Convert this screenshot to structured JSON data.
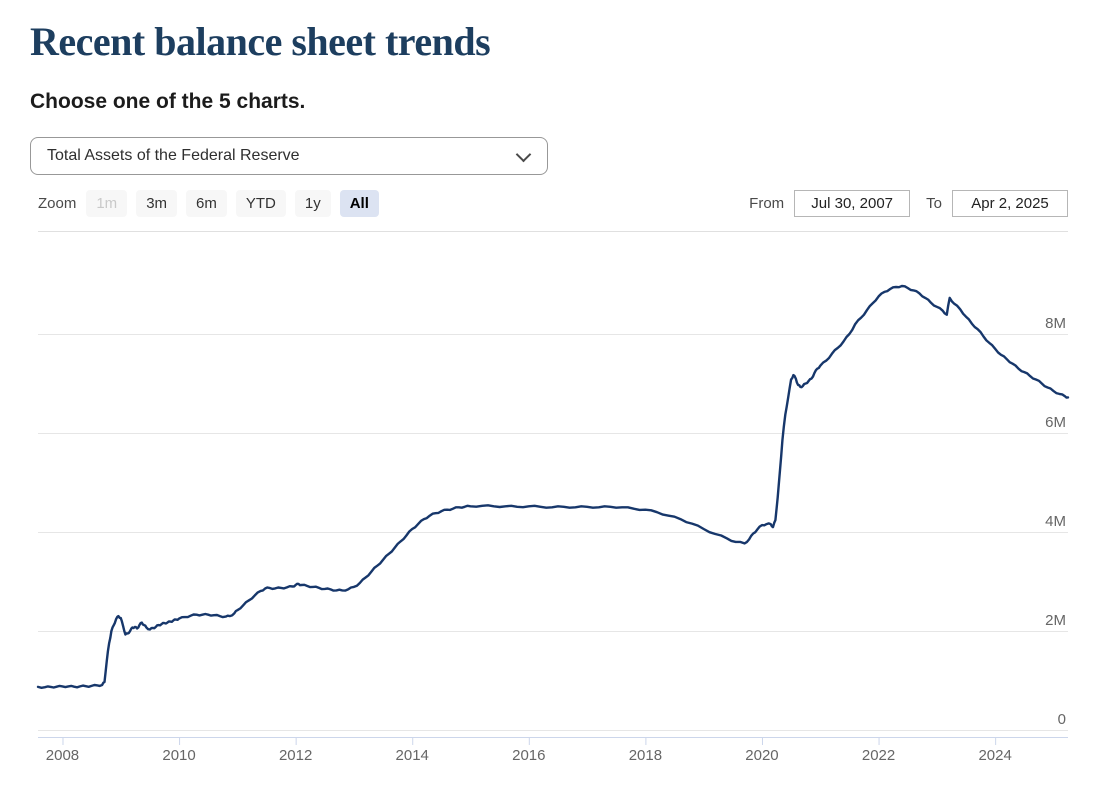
{
  "header": {
    "title": "Recent balance sheet trends",
    "subtitle": "Choose one of the 5 charts."
  },
  "chart_selector": {
    "value": "Total Assets of the Federal Reserve",
    "icon": "chevron-down-icon"
  },
  "toolbar": {
    "zoom_label": "Zoom",
    "buttons": [
      {
        "label": "1m",
        "state": "disabled"
      },
      {
        "label": "3m",
        "state": "normal"
      },
      {
        "label": "6m",
        "state": "normal"
      },
      {
        "label": "YTD",
        "state": "normal"
      },
      {
        "label": "1y",
        "state": "normal"
      },
      {
        "label": "All",
        "state": "selected"
      }
    ],
    "from_label": "From",
    "from_value": "Jul 30, 2007",
    "to_label": "To",
    "to_value": "Apr 2, 2025"
  },
  "colors": {
    "title": "#1d3e5f",
    "line": "#17376b",
    "gridline": "#e6e6e6",
    "axis_line": "#ccd6eb",
    "tick_label": "#666666",
    "selected_button_bg": "#dce3f2"
  },
  "chart_data": {
    "type": "line",
    "title": "",
    "xlabel": "",
    "ylabel": "",
    "legend": "none",
    "grid": "horizontal",
    "x_range": [
      2007.58,
      2025.25
    ],
    "y_range": [
      0,
      9.6
    ],
    "x_ticks": [
      {
        "value": 2008,
        "label": "2008"
      },
      {
        "value": 2010,
        "label": "2010"
      },
      {
        "value": 2012,
        "label": "2012"
      },
      {
        "value": 2014,
        "label": "2014"
      },
      {
        "value": 2016,
        "label": "2016"
      },
      {
        "value": 2018,
        "label": "2018"
      },
      {
        "value": 2020,
        "label": "2020"
      },
      {
        "value": 2022,
        "label": "2022"
      },
      {
        "value": 2024,
        "label": "2024"
      }
    ],
    "y_ticks": [
      {
        "value": 0,
        "label": "0"
      },
      {
        "value": 2,
        "label": "2M"
      },
      {
        "value": 4,
        "label": "4M"
      },
      {
        "value": 6,
        "label": "6M"
      },
      {
        "value": 8,
        "label": "8M"
      }
    ],
    "series": [
      {
        "name": "Total Assets of the Federal Reserve",
        "color": "#17376b",
        "units": "millions (M), i.e. trillions of USD",
        "points": [
          [
            2007.58,
            0.87
          ],
          [
            2007.7,
            0.865
          ],
          [
            2007.8,
            0.87
          ],
          [
            2007.9,
            0.875
          ],
          [
            2008.0,
            0.88
          ],
          [
            2008.1,
            0.88
          ],
          [
            2008.2,
            0.875
          ],
          [
            2008.3,
            0.88
          ],
          [
            2008.4,
            0.885
          ],
          [
            2008.5,
            0.89
          ],
          [
            2008.6,
            0.9
          ],
          [
            2008.68,
            0.91
          ],
          [
            2008.72,
            0.97
          ],
          [
            2008.76,
            1.4
          ],
          [
            2008.8,
            1.75
          ],
          [
            2008.84,
            2.0
          ],
          [
            2008.88,
            2.12
          ],
          [
            2008.92,
            2.24
          ],
          [
            2008.96,
            2.3
          ],
          [
            2009.0,
            2.26
          ],
          [
            2009.04,
            2.1
          ],
          [
            2009.08,
            1.93
          ],
          [
            2009.12,
            1.95
          ],
          [
            2009.16,
            2.0
          ],
          [
            2009.2,
            2.07
          ],
          [
            2009.24,
            2.08
          ],
          [
            2009.28,
            2.05
          ],
          [
            2009.32,
            2.12
          ],
          [
            2009.36,
            2.17
          ],
          [
            2009.4,
            2.12
          ],
          [
            2009.44,
            2.07
          ],
          [
            2009.5,
            2.03
          ],
          [
            2009.55,
            2.06
          ],
          [
            2009.6,
            2.08
          ],
          [
            2009.65,
            2.12
          ],
          [
            2009.7,
            2.14
          ],
          [
            2009.75,
            2.16
          ],
          [
            2009.8,
            2.17
          ],
          [
            2009.85,
            2.19
          ],
          [
            2009.9,
            2.21
          ],
          [
            2009.95,
            2.23
          ],
          [
            2010.0,
            2.25
          ],
          [
            2010.1,
            2.28
          ],
          [
            2010.2,
            2.31
          ],
          [
            2010.3,
            2.33
          ],
          [
            2010.4,
            2.33
          ],
          [
            2010.5,
            2.33
          ],
          [
            2010.6,
            2.32
          ],
          [
            2010.7,
            2.3
          ],
          [
            2010.8,
            2.29
          ],
          [
            2010.87,
            2.3
          ],
          [
            2010.95,
            2.36
          ],
          [
            2011.0,
            2.42
          ],
          [
            2011.1,
            2.52
          ],
          [
            2011.2,
            2.62
          ],
          [
            2011.3,
            2.72
          ],
          [
            2011.4,
            2.81
          ],
          [
            2011.48,
            2.86
          ],
          [
            2011.55,
            2.87
          ],
          [
            2011.65,
            2.86
          ],
          [
            2011.75,
            2.87
          ],
          [
            2011.85,
            2.88
          ],
          [
            2011.95,
            2.9
          ],
          [
            2012.0,
            2.93
          ],
          [
            2012.05,
            2.95
          ],
          [
            2012.1,
            2.93
          ],
          [
            2012.2,
            2.91
          ],
          [
            2012.3,
            2.89
          ],
          [
            2012.4,
            2.87
          ],
          [
            2012.5,
            2.85
          ],
          [
            2012.6,
            2.84
          ],
          [
            2012.7,
            2.82
          ],
          [
            2012.8,
            2.82
          ],
          [
            2012.9,
            2.84
          ],
          [
            2013.0,
            2.89
          ],
          [
            2013.1,
            2.97
          ],
          [
            2013.2,
            3.08
          ],
          [
            2013.3,
            3.2
          ],
          [
            2013.4,
            3.32
          ],
          [
            2013.5,
            3.44
          ],
          [
            2013.6,
            3.56
          ],
          [
            2013.7,
            3.68
          ],
          [
            2013.8,
            3.81
          ],
          [
            2013.9,
            3.93
          ],
          [
            2014.0,
            4.06
          ],
          [
            2014.1,
            4.16
          ],
          [
            2014.2,
            4.26
          ],
          [
            2014.3,
            4.33
          ],
          [
            2014.4,
            4.38
          ],
          [
            2014.5,
            4.42
          ],
          [
            2014.6,
            4.45
          ],
          [
            2014.7,
            4.47
          ],
          [
            2014.8,
            4.5
          ],
          [
            2014.9,
            4.51
          ],
          [
            2015.0,
            4.52
          ],
          [
            2015.2,
            4.53
          ],
          [
            2015.4,
            4.52
          ],
          [
            2015.6,
            4.52
          ],
          [
            2015.8,
            4.51
          ],
          [
            2016.0,
            4.52
          ],
          [
            2016.2,
            4.51
          ],
          [
            2016.4,
            4.5
          ],
          [
            2016.6,
            4.51
          ],
          [
            2016.8,
            4.5
          ],
          [
            2017.0,
            4.51
          ],
          [
            2017.2,
            4.5
          ],
          [
            2017.4,
            4.51
          ],
          [
            2017.6,
            4.5
          ],
          [
            2017.8,
            4.47
          ],
          [
            2018.0,
            4.45
          ],
          [
            2018.2,
            4.4
          ],
          [
            2018.4,
            4.33
          ],
          [
            2018.6,
            4.26
          ],
          [
            2018.8,
            4.17
          ],
          [
            2019.0,
            4.06
          ],
          [
            2019.2,
            3.96
          ],
          [
            2019.4,
            3.87
          ],
          [
            2019.55,
            3.8
          ],
          [
            2019.7,
            3.77
          ],
          [
            2019.78,
            3.85
          ],
          [
            2019.85,
            3.97
          ],
          [
            2019.92,
            4.05
          ],
          [
            2020.0,
            4.14
          ],
          [
            2020.08,
            4.16
          ],
          [
            2020.15,
            4.16
          ],
          [
            2020.19,
            4.1
          ],
          [
            2020.23,
            4.24
          ],
          [
            2020.27,
            4.7
          ],
          [
            2020.31,
            5.25
          ],
          [
            2020.35,
            5.85
          ],
          [
            2020.4,
            6.37
          ],
          [
            2020.45,
            6.72
          ],
          [
            2020.5,
            7.08
          ],
          [
            2020.54,
            7.17
          ],
          [
            2020.58,
            7.1
          ],
          [
            2020.62,
            6.97
          ],
          [
            2020.66,
            6.93
          ],
          [
            2020.7,
            6.95
          ],
          [
            2020.75,
            7.0
          ],
          [
            2020.8,
            7.05
          ],
          [
            2020.85,
            7.1
          ],
          [
            2020.9,
            7.21
          ],
          [
            2020.95,
            7.3
          ],
          [
            2021.0,
            7.36
          ],
          [
            2021.1,
            7.46
          ],
          [
            2021.2,
            7.6
          ],
          [
            2021.3,
            7.72
          ],
          [
            2021.4,
            7.85
          ],
          [
            2021.5,
            8.0
          ],
          [
            2021.6,
            8.2
          ],
          [
            2021.7,
            8.33
          ],
          [
            2021.8,
            8.48
          ],
          [
            2021.9,
            8.62
          ],
          [
            2022.0,
            8.76
          ],
          [
            2022.1,
            8.85
          ],
          [
            2022.2,
            8.91
          ],
          [
            2022.3,
            8.95
          ],
          [
            2022.4,
            8.97
          ],
          [
            2022.5,
            8.93
          ],
          [
            2022.6,
            8.88
          ],
          [
            2022.7,
            8.82
          ],
          [
            2022.8,
            8.73
          ],
          [
            2022.9,
            8.63
          ],
          [
            2023.0,
            8.55
          ],
          [
            2023.1,
            8.47
          ],
          [
            2023.17,
            8.39
          ],
          [
            2023.22,
            8.73
          ],
          [
            2023.3,
            8.61
          ],
          [
            2023.4,
            8.5
          ],
          [
            2023.5,
            8.35
          ],
          [
            2023.6,
            8.21
          ],
          [
            2023.7,
            8.1
          ],
          [
            2023.8,
            7.95
          ],
          [
            2023.9,
            7.82
          ],
          [
            2024.0,
            7.7
          ],
          [
            2024.1,
            7.58
          ],
          [
            2024.2,
            7.49
          ],
          [
            2024.3,
            7.4
          ],
          [
            2024.4,
            7.3
          ],
          [
            2024.5,
            7.23
          ],
          [
            2024.6,
            7.15
          ],
          [
            2024.7,
            7.08
          ],
          [
            2024.8,
            7.0
          ],
          [
            2024.9,
            6.92
          ],
          [
            2025.0,
            6.85
          ],
          [
            2025.1,
            6.79
          ],
          [
            2025.2,
            6.74
          ],
          [
            2025.25,
            6.72
          ]
        ]
      }
    ]
  }
}
